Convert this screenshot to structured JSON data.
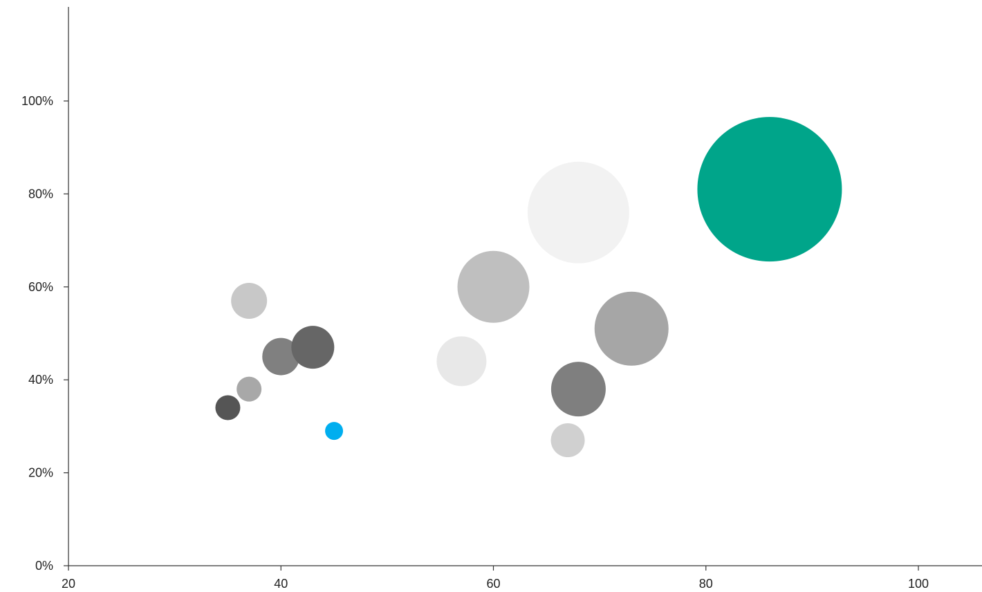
{
  "chart_data": {
    "type": "scatter",
    "variant": "bubble",
    "title": "",
    "xlabel": "",
    "ylabel": "",
    "xlim": [
      20,
      105
    ],
    "ylim": [
      0,
      120
    ],
    "grid": false,
    "legend": "none",
    "x_ticks": [
      {
        "value": 20,
        "label": "20"
      },
      {
        "value": 40,
        "label": "40"
      },
      {
        "value": 60,
        "label": "60"
      },
      {
        "value": 80,
        "label": "80"
      },
      {
        "value": 100,
        "label": "100"
      }
    ],
    "y_ticks": [
      {
        "value": 0,
        "label": "0%"
      },
      {
        "value": 20,
        "label": "20%"
      },
      {
        "value": 40,
        "label": "40%"
      },
      {
        "value": 60,
        "label": "60%"
      },
      {
        "value": 80,
        "label": "80%"
      },
      {
        "value": 100,
        "label": "100%"
      }
    ],
    "points": [
      {
        "x": 86,
        "y": 81,
        "size": 209,
        "color": "#00A58A"
      },
      {
        "x": 73,
        "y": 51,
        "size": 107,
        "color": "#A6A6A6"
      },
      {
        "x": 68,
        "y": 76,
        "size": 147,
        "color": "#F2F2F2"
      },
      {
        "x": 57,
        "y": 44,
        "size": 72,
        "color": "#E8E8E8"
      },
      {
        "x": 60,
        "y": 60,
        "size": 104,
        "color": "#BFBFBF"
      },
      {
        "x": 68,
        "y": 38,
        "size": 79,
        "color": "#7F7F7F"
      },
      {
        "x": 67,
        "y": 27,
        "size": 49,
        "color": "#D0D0D0"
      },
      {
        "x": 40,
        "y": 45,
        "size": 54,
        "color": "#808080"
      },
      {
        "x": 43,
        "y": 47,
        "size": 62,
        "color": "#666666"
      },
      {
        "x": 37,
        "y": 57,
        "size": 52,
        "color": "#C8C8C8"
      },
      {
        "x": 35,
        "y": 34,
        "size": 36,
        "color": "#555555"
      },
      {
        "x": 37,
        "y": 38,
        "size": 36,
        "color": "#A8A8A8"
      },
      {
        "x": 45,
        "y": 29,
        "size": 26,
        "color": "#00AEEF"
      }
    ]
  },
  "colors": {
    "axis": "#333333",
    "text": "#222222",
    "highlight_green": "#00A58A",
    "highlight_blue": "#00AEEF"
  }
}
